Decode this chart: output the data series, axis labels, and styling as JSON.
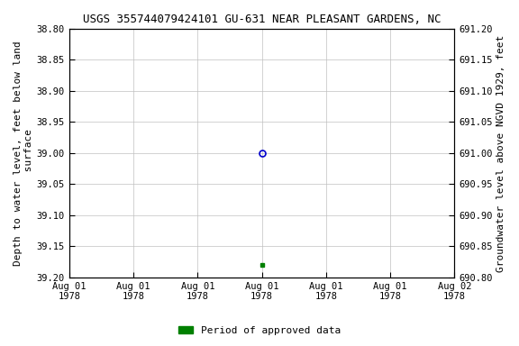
{
  "title": "USGS 355744079424101 GU-631 NEAR PLEASANT GARDENS, NC",
  "ylabel_left": "Depth to water level, feet below land\n surface",
  "ylabel_right": "Groundwater level above NGVD 1929, feet",
  "ylim_left": [
    38.8,
    39.2
  ],
  "ylim_right": [
    690.8,
    691.2
  ],
  "yticks_left": [
    38.8,
    38.85,
    38.9,
    38.95,
    39.0,
    39.05,
    39.1,
    39.15,
    39.2
  ],
  "yticks_right": [
    690.8,
    690.85,
    690.9,
    690.95,
    691.0,
    691.05,
    691.1,
    691.15,
    691.2
  ],
  "xlim": [
    0,
    6
  ],
  "xtick_positions": [
    0,
    1,
    2,
    3,
    4,
    5,
    6
  ],
  "xtick_labels": [
    "Aug 01\n1978",
    "Aug 01\n1978",
    "Aug 01\n1978",
    "Aug 01\n1978",
    "Aug 01\n1978",
    "Aug 01\n1978",
    "Aug 02\n1978"
  ],
  "data_points": [
    {
      "x": 3,
      "value": 39.0,
      "style": "open_circle",
      "color": "#0000cc"
    },
    {
      "x": 3,
      "value": 39.18,
      "style": "filled_square",
      "color": "#008000"
    }
  ],
  "legend_label": "Period of approved data",
  "legend_color": "#008000",
  "background_color": "#ffffff",
  "grid_color": "#c0c0c0",
  "title_fontsize": 9,
  "axis_fontsize": 8,
  "tick_fontsize": 7.5,
  "font_family": "monospace"
}
